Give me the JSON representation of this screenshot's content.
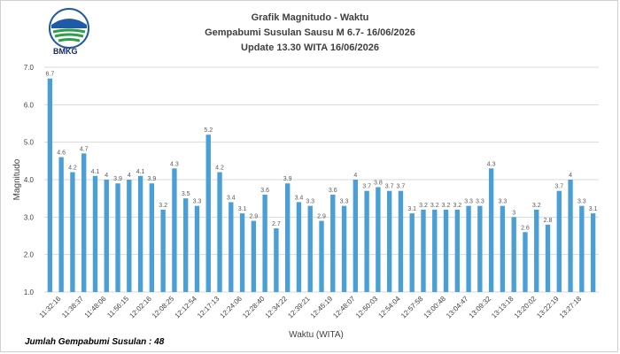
{
  "logo": {
    "text": "BMKG",
    "icon": "bmkg-logo-icon"
  },
  "footer": {
    "text": "Jumlah Gempabumi Susulan : 48"
  },
  "chart_data": {
    "type": "bar",
    "title": "Grafik Magnitudo - Waktu",
    "subtitle": "Gempabumi Susulan Sausu  M 6.7- 16/06/2026",
    "subtitle2": "Update 13.30 WITA 16/06/2026",
    "xlabel": "Waktu (WITA)",
    "ylabel": "Magnitudo",
    "ylim": [
      1.0,
      7.0
    ],
    "yticks": [
      "1.0",
      "2.0",
      "3.0",
      "4.0",
      "5.0",
      "6.0",
      "7.0"
    ],
    "grid": true,
    "bar_color": "#4a9fd6",
    "x_tick_labels": [
      "11:32:16",
      "11:38:37",
      "11:48:06",
      "11:56:15",
      "12:02:16",
      "12:08:25",
      "12:12:54",
      "12:17:13",
      "12:24:06",
      "12:28:40",
      "12:34:22",
      "12:39:21",
      "12:45:19",
      "12:48:07",
      "12:50:03",
      "12:54:04",
      "12:57:58",
      "13:00:48",
      "13:04:47",
      "13:09:32",
      "13:13:18",
      "13:20:02",
      "13:22:19",
      "13:27:18"
    ],
    "values": [
      6.7,
      4.6,
      4.2,
      4.7,
      4.1,
      4,
      3.9,
      4,
      4.1,
      3.9,
      3.2,
      4.3,
      3.5,
      3.3,
      5.2,
      4.2,
      3.4,
      3.1,
      2.9,
      3.6,
      2.7,
      3.9,
      3.4,
      3.3,
      2.9,
      3.6,
      3.3,
      4,
      3.7,
      3.8,
      3.7,
      3.7,
      3.1,
      3.2,
      3.2,
      3.2,
      3.2,
      3.3,
      3.3,
      4.3,
      3.3,
      3,
      2.6,
      3.2,
      2.8,
      3.7,
      4,
      3.3,
      3.1
    ]
  }
}
